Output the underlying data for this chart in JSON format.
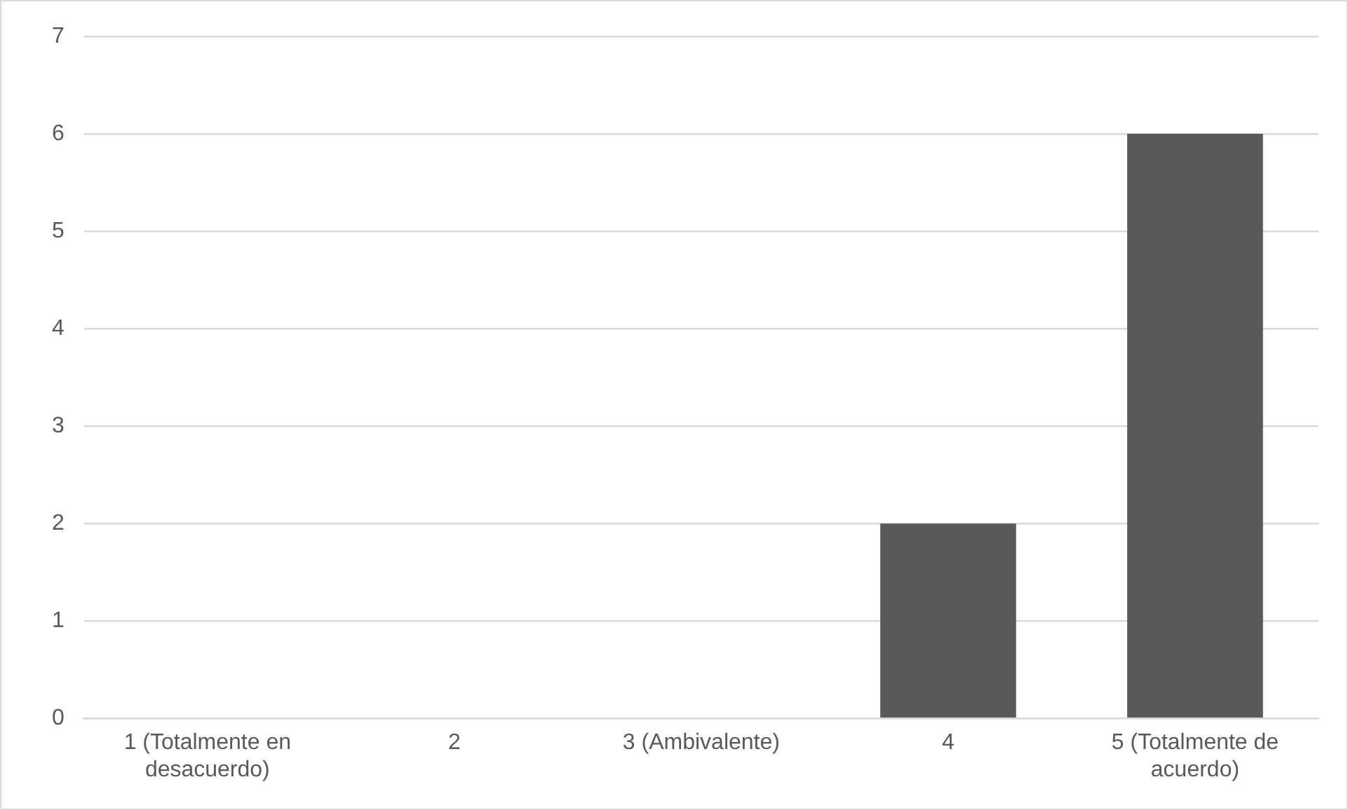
{
  "chart_data": {
    "type": "bar",
    "categories": [
      "1 (Totalmente en desacuerdo)",
      "2",
      "3 (Ambivalente)",
      "4",
      "5 (Totalmente de acuerdo)"
    ],
    "values": [
      0,
      0,
      0,
      2,
      6
    ],
    "color": "#595959",
    "ylim": [
      0,
      7
    ],
    "yticks": [
      0,
      1,
      2,
      3,
      4,
      5,
      6,
      7
    ],
    "grid": "y"
  }
}
